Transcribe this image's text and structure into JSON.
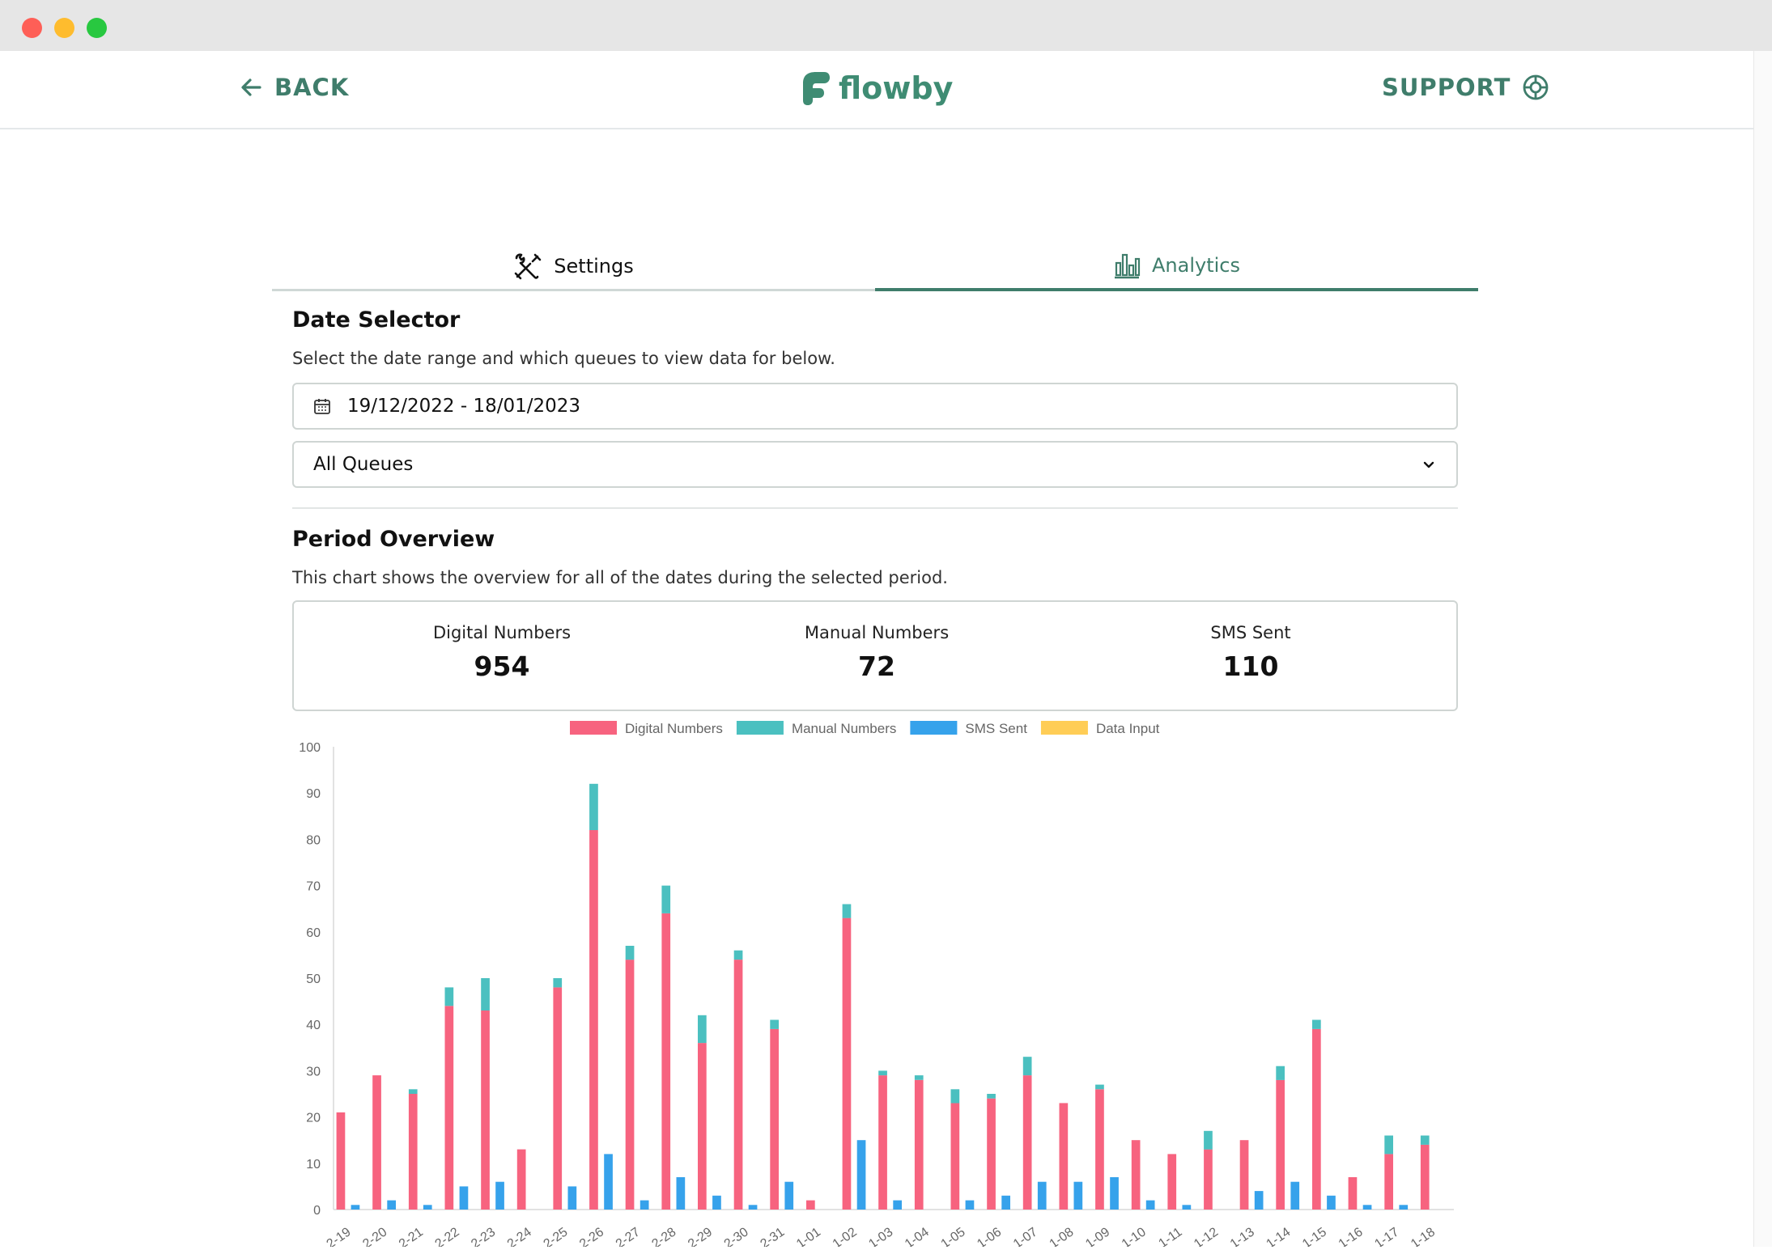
{
  "window": {
    "controls": [
      "close",
      "minimize",
      "maximize"
    ]
  },
  "header": {
    "back_label": "BACK",
    "logo_text": "flowby",
    "support_label": "SUPPORT"
  },
  "tabs": [
    {
      "label": "Settings",
      "icon": "tools-icon",
      "active": false
    },
    {
      "label": "Analytics",
      "icon": "bar-chart-icon",
      "active": true
    }
  ],
  "date_selector": {
    "title": "Date Selector",
    "description": "Select the date range and which queues to view data for below.",
    "date_range": "19/12/2022 - 18/01/2023",
    "queue_selected": "All Queues"
  },
  "period_overview": {
    "title": "Period Overview",
    "description": "This chart shows the overview for all of the dates during the selected period.",
    "stats": [
      {
        "label": "Digital Numbers",
        "value": "954"
      },
      {
        "label": "Manual Numbers",
        "value": "72"
      },
      {
        "label": "SMS Sent",
        "value": "110"
      }
    ]
  },
  "colors": {
    "accent": "#3f7d6b",
    "digital": "#f7637f",
    "manual": "#4bc0c0",
    "sms": "#36a2eb",
    "data_input": "#ffcd56"
  },
  "chart_data": {
    "type": "bar",
    "stacked": true,
    "legend_position": "top",
    "ylim": [
      0,
      100
    ],
    "yticks": [
      "0",
      "10",
      "20",
      "30",
      "40",
      "50",
      "60",
      "70",
      "80",
      "90",
      "100"
    ],
    "categories": [
      "2-19",
      "2-20",
      "2-21",
      "2-22",
      "2-23",
      "2-24",
      "2-25",
      "2-26",
      "2-27",
      "2-28",
      "2-29",
      "2-30",
      "2-31",
      "1-01",
      "1-02",
      "1-03",
      "1-04",
      "1-05",
      "1-06",
      "1-07",
      "1-08",
      "1-09",
      "1-10",
      "1-11",
      "1-12",
      "1-13",
      "1-14",
      "1-15",
      "1-16",
      "1-17",
      "1-18"
    ],
    "series": [
      {
        "name": "Digital Numbers",
        "stack": "numbers",
        "color": "#f7637f",
        "values": [
          21,
          29,
          25,
          44,
          43,
          13,
          48,
          82,
          54,
          64,
          36,
          54,
          39,
          2,
          63,
          29,
          28,
          23,
          24,
          29,
          23,
          26,
          15,
          12,
          13,
          15,
          28,
          39,
          7,
          12,
          14
        ]
      },
      {
        "name": "Manual Numbers",
        "stack": "numbers",
        "color": "#4bc0c0",
        "values": [
          0,
          0,
          1,
          4,
          7,
          0,
          2,
          10,
          3,
          6,
          6,
          2,
          2,
          0,
          3,
          1,
          1,
          3,
          1,
          4,
          0,
          1,
          0,
          0,
          4,
          0,
          3,
          2,
          0,
          4,
          2
        ]
      },
      {
        "name": "SMS Sent",
        "stack": "sms",
        "color": "#36a2eb",
        "values": [
          1,
          2,
          1,
          5,
          6,
          0,
          5,
          12,
          2,
          7,
          3,
          1,
          6,
          0,
          15,
          2,
          0,
          2,
          3,
          6,
          6,
          7,
          2,
          1,
          0,
          4,
          6,
          3,
          1,
          1,
          0
        ]
      },
      {
        "name": "Data Input",
        "stack": "data",
        "color": "#ffcd56",
        "values": [
          0,
          0,
          0,
          0,
          0,
          0,
          0,
          0,
          0,
          0,
          0,
          0,
          0,
          0,
          0,
          0,
          0,
          0,
          0,
          0,
          0,
          0,
          0,
          0,
          0,
          0,
          0,
          0,
          0,
          0,
          0
        ]
      }
    ]
  }
}
